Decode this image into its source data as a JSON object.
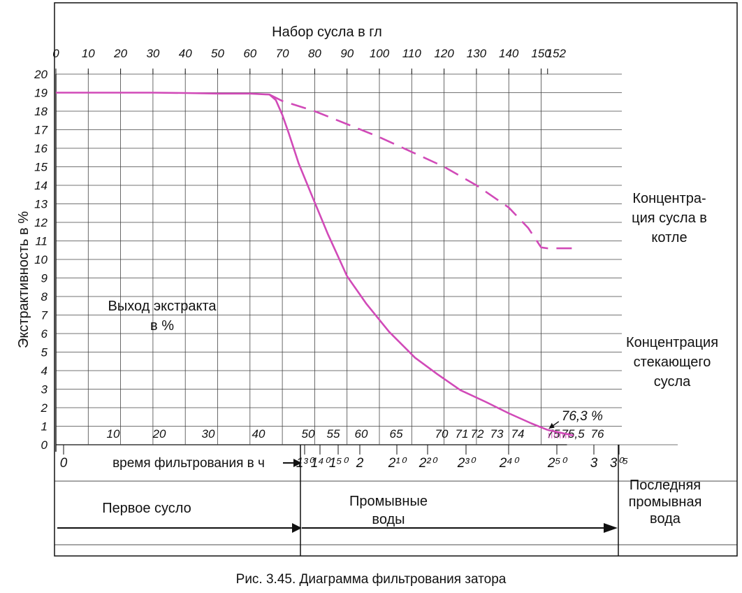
{
  "caption": "Рис. 3.45. Диаграмма фильтрования затора",
  "chart_data": {
    "type": "line",
    "title": "",
    "ylabel": "Экстрактивность в %",
    "ylim": [
      0,
      20
    ],
    "y_ticks": [
      "0",
      "1",
      "2",
      "3",
      "4",
      "5",
      "6",
      "7",
      "8",
      "9",
      "10",
      "11",
      "12",
      "13",
      "14",
      "15",
      "16",
      "17",
      "18",
      "19",
      "20"
    ],
    "top_axis": {
      "label": "Набор сусла в гл",
      "ticks": [
        "0",
        "10",
        "20",
        "30",
        "40",
        "50",
        "60",
        "70",
        "80",
        "90",
        "100",
        "110",
        "120",
        "130",
        "140",
        "150",
        "152"
      ]
    },
    "time_axis": {
      "label": "время фильтрования в ч",
      "minute_ticks": [
        "10",
        "20",
        "30",
        "40",
        "50",
        "55",
        "60",
        "65",
        "70",
        "71",
        "72",
        "73",
        "74",
        "75",
        "75,5",
        "76"
      ],
      "hour_ticks": [
        "0",
        "1³⁰",
        "1⁴⁰",
        "1⁵⁰",
        "2",
        "2¹⁰",
        "2²⁰",
        "2³⁰",
        "2⁴⁰",
        "2⁵⁰",
        "3",
        "3⁰⁵"
      ]
    },
    "line_color": "#d14ab8",
    "series": [
      {
        "name": "Концентрация стекающего сусла",
        "style": "solid",
        "points": [
          [
            0,
            19
          ],
          [
            10,
            19
          ],
          [
            20,
            19
          ],
          [
            30,
            19
          ],
          [
            40,
            18.98
          ],
          [
            50,
            18.95
          ],
          [
            60,
            18.95
          ],
          [
            66,
            18.9
          ],
          [
            68,
            18.6
          ],
          [
            70,
            17.8
          ],
          [
            72,
            16.8
          ],
          [
            75,
            15.2
          ],
          [
            79,
            13.5
          ],
          [
            84,
            11.4
          ],
          [
            90,
            9.1
          ],
          [
            96,
            7.6
          ],
          [
            103,
            6.1
          ],
          [
            111,
            4.7
          ],
          [
            118,
            3.8
          ],
          [
            125,
            2.95
          ],
          [
            133,
            2.3
          ],
          [
            140,
            1.7
          ],
          [
            147,
            1.15
          ],
          [
            152,
            0.8
          ]
        ]
      },
      {
        "name": "Концентрация сусла в котле",
        "style": "dashed",
        "points": [
          [
            66,
            18.9
          ],
          [
            70,
            18.55
          ],
          [
            80,
            18.0
          ],
          [
            90,
            17.3
          ],
          [
            100,
            16.6
          ],
          [
            110,
            15.8
          ],
          [
            120,
            15.0
          ],
          [
            130,
            14.0
          ],
          [
            140,
            12.8
          ],
          [
            146,
            11.7
          ],
          [
            150,
            10.65
          ],
          [
            152,
            10.6
          ],
          [
            160,
            10.6
          ]
        ]
      }
    ],
    "last_wash_endpoint": {
      "x": 152,
      "y": 0.8,
      "label": "76,3 %",
      "tail_y": 0.5
    },
    "annotations": {
      "yield_label": "Выход экстракта\nв %",
      "kettle_label": "Концентра-\nция сусла в\nкотле",
      "runoff_label": "Концентрация\nстекающего\nсусла"
    },
    "phases": [
      {
        "label": "Первое сусло"
      },
      {
        "label": "Промывные\nводы"
      },
      {
        "label": "Последняя\nпромывная\nвода"
      }
    ]
  }
}
